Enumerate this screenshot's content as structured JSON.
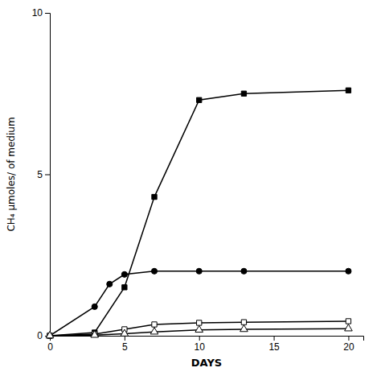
{
  "chart_data": {
    "type": "line",
    "xlabel": "DAYS",
    "ylabel": "CH₄  μmoles/ of medium",
    "xlim": [
      0,
      21
    ],
    "ylim": [
      0,
      10
    ],
    "xticks": [
      0,
      5,
      10,
      15,
      20
    ],
    "yticks": [
      0,
      5,
      10
    ],
    "grid": false,
    "series": [
      {
        "color": "black",
        "marker": "square",
        "x": [
          0,
          3,
          5,
          7,
          10,
          13,
          20
        ],
        "values": [
          0,
          0.1,
          1.5,
          4.3,
          7.3,
          7.5,
          7.6
        ]
      },
      {
        "color": "black",
        "marker": "circle",
        "x": [
          0,
          3,
          4,
          5,
          7,
          10,
          13,
          20
        ],
        "values": [
          0,
          0.9,
          1.6,
          1.9,
          2.0,
          2.0,
          2.0,
          2.0
        ]
      },
      {
        "color": "black",
        "marker": "open-square",
        "x": [
          0,
          3,
          5,
          7,
          10,
          13,
          20
        ],
        "values": [
          0,
          0.05,
          0.2,
          0.35,
          0.4,
          0.42,
          0.45
        ]
      },
      {
        "color": "black",
        "marker": "open-triangle",
        "x": [
          0,
          3,
          5,
          7,
          10,
          13,
          20
        ],
        "values": [
          0,
          0.02,
          0.06,
          0.12,
          0.18,
          0.2,
          0.22
        ]
      }
    ]
  }
}
